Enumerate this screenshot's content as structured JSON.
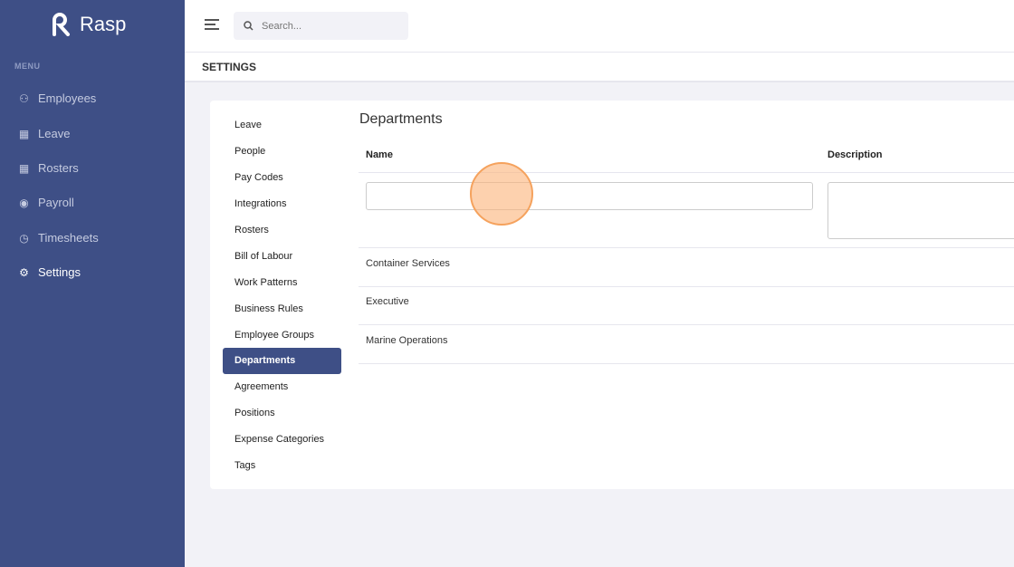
{
  "app": {
    "name": "Rasp"
  },
  "sidebar": {
    "menu_label": "MENU",
    "items": [
      {
        "label": "Employees",
        "icon": "people-icon"
      },
      {
        "label": "Leave",
        "icon": "calendar-icon"
      },
      {
        "label": "Rosters",
        "icon": "calendar-grid-icon"
      },
      {
        "label": "Payroll",
        "icon": "dollar-circle-icon"
      },
      {
        "label": "Timesheets",
        "icon": "clock-icon"
      },
      {
        "label": "Settings",
        "icon": "gear-icon",
        "active": true
      }
    ]
  },
  "search": {
    "placeholder": "Search..."
  },
  "page": {
    "title": "SETTINGS"
  },
  "settings_nav": [
    "Leave",
    "People",
    "Pay Codes",
    "Integrations",
    "Rosters",
    "Bill of Labour",
    "Work Patterns",
    "Business Rules",
    "Employee Groups",
    "Departments",
    "Agreements",
    "Positions",
    "Expense Categories",
    "Tags"
  ],
  "settings_nav_active": "Departments",
  "departments": {
    "title": "Departments",
    "columns": {
      "name": "Name",
      "description": "Description"
    },
    "new_name_value": "",
    "new_description_value": "",
    "rows": [
      "Container Services",
      "Executive",
      "Marine Operations"
    ]
  },
  "colors": {
    "sidebar": "#3e4f86",
    "accent": "#3e4f86",
    "click_marker": "#f5a25d"
  }
}
